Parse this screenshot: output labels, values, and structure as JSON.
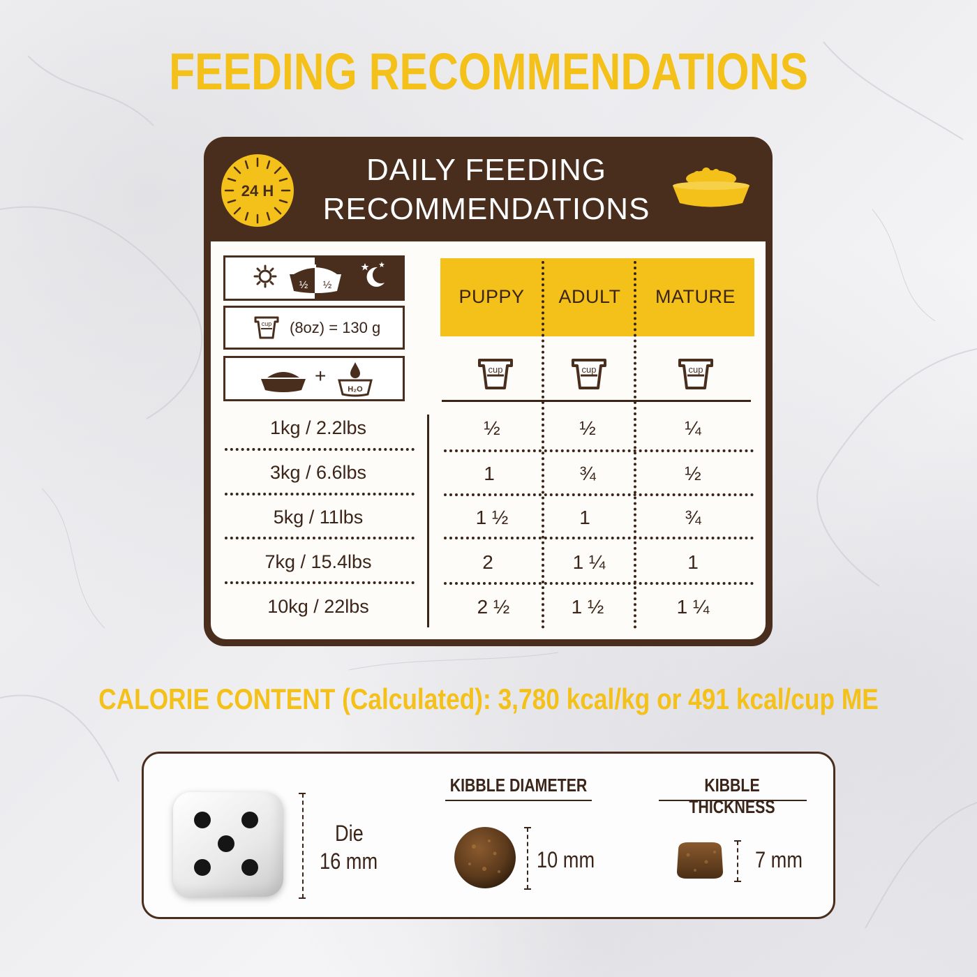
{
  "title": "FEEDING RECOMMENDATIONS",
  "table": {
    "heading_line1": "DAILY FEEDING",
    "heading_line2": "RECOMMENDATIONS",
    "badge": "24 H",
    "legend": {
      "split_labels": [
        "½",
        "½"
      ],
      "cup_text": "(8oz) = 130 g",
      "cup_icon_label": "cup",
      "water_label": "H₂O",
      "plus": "+"
    },
    "columns": [
      "PUPPY",
      "ADULT",
      "MATURE"
    ],
    "cup_icon_label": "cup",
    "rows": [
      {
        "weight": "1kg / 2.2lbs",
        "values": [
          "½",
          "½",
          "¼"
        ]
      },
      {
        "weight": "3kg / 6.6lbs",
        "values": [
          "1",
          "¾",
          "½"
        ]
      },
      {
        "weight": "5kg / 11lbs",
        "values": [
          "1 ½",
          "1",
          "¾"
        ]
      },
      {
        "weight": "7kg / 15.4lbs",
        "values": [
          "2",
          "1 ¼",
          "1"
        ]
      },
      {
        "weight": "10kg / 22lbs",
        "values": [
          "2 ½",
          "1 ½",
          "1 ¼"
        ]
      }
    ]
  },
  "calorie_text": "CALORIE CONTENT (Calculated): 3,780 kcal/kg or 491 kcal/cup ME",
  "kibble": {
    "die_label": "Die",
    "die_size": "16 mm",
    "diameter_heading": "KIBBLE DIAMETER",
    "diameter_value": "10 mm",
    "thickness_heading": "KIBBLE THICKNESS",
    "thickness_value": "7 mm"
  },
  "colors": {
    "accent": "#f4c01a",
    "brown": "#4a2e1d"
  }
}
